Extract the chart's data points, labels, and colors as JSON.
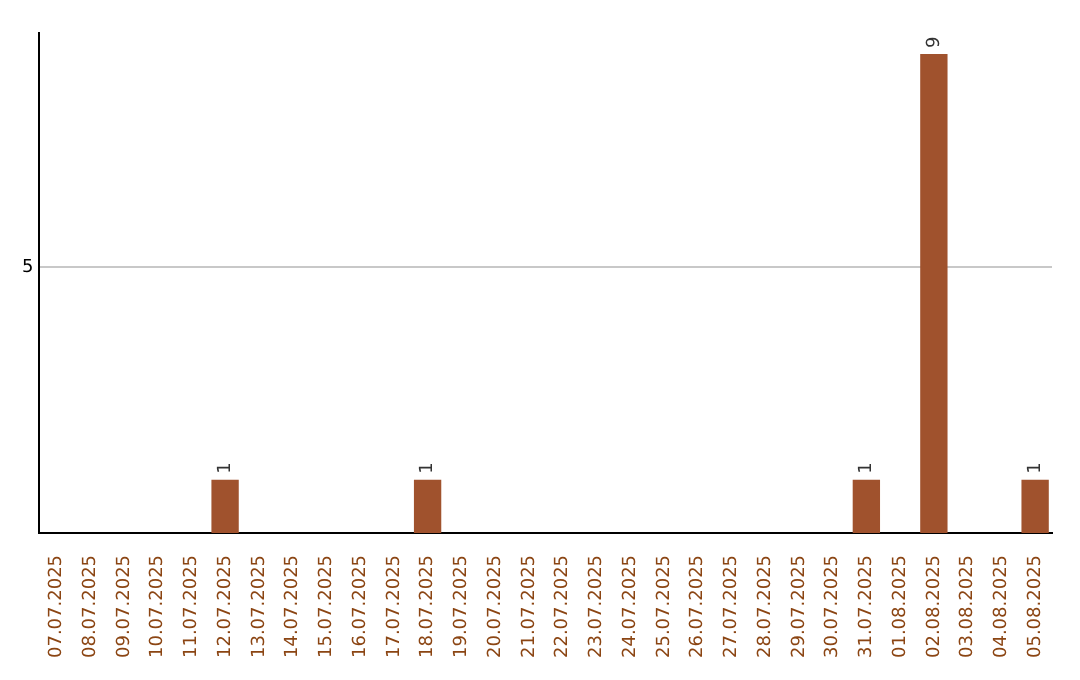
{
  "chart_data": {
    "type": "bar",
    "categories": [
      "07.07.2025",
      "08.07.2025",
      "09.07.2025",
      "10.07.2025",
      "11.07.2025",
      "12.07.2025",
      "13.07.2025",
      "14.07.2025",
      "15.07.2025",
      "16.07.2025",
      "17.07.2025",
      "18.07.2025",
      "19.07.2025",
      "20.07.2025",
      "21.07.2025",
      "22.07.2025",
      "23.07.2025",
      "24.07.2025",
      "25.07.2025",
      "26.07.2025",
      "27.07.2025",
      "28.07.2025",
      "29.07.2025",
      "30.07.2025",
      "31.07.2025",
      "01.08.2025",
      "02.08.2025",
      "03.08.2025",
      "04.08.2025",
      "05.08.2025"
    ],
    "values": [
      0,
      0,
      0,
      0,
      0,
      1,
      0,
      0,
      0,
      0,
      0,
      1,
      0,
      0,
      0,
      0,
      0,
      0,
      0,
      0,
      0,
      0,
      0,
      0,
      1,
      0,
      9,
      0,
      0,
      1
    ],
    "color": "#a0522d",
    "value_labels": [
      null,
      null,
      null,
      null,
      null,
      "1",
      null,
      null,
      null,
      null,
      null,
      "1",
      null,
      null,
      null,
      null,
      null,
      null,
      null,
      null,
      null,
      null,
      null,
      null,
      "1",
      null,
      "9",
      null,
      null,
      "1"
    ],
    "ylim": [
      0,
      9.4
    ],
    "yticks": [
      5
    ],
    "grid": "y",
    "legend": false
  }
}
